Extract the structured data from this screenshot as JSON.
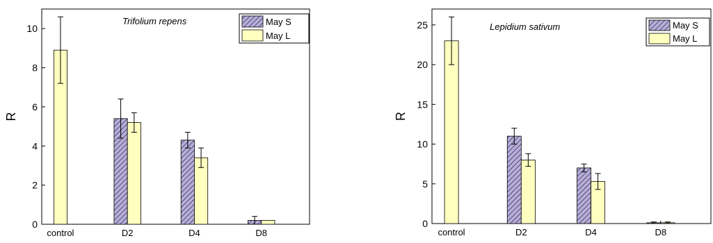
{
  "chart_data": [
    {
      "type": "bar",
      "annotation": "Trifolium repens",
      "title": "",
      "xlabel": "",
      "ylabel": "R",
      "categories": [
        "control",
        "D2",
        "D4",
        "D8"
      ],
      "ylim": [
        0,
        11
      ],
      "yticks": [
        0,
        2,
        4,
        6,
        8,
        10
      ],
      "grid": false,
      "legend": "top-right",
      "series": [
        {
          "name": "May S",
          "values": [
            null,
            5.4,
            4.3,
            0.2
          ],
          "errors": [
            null,
            1.0,
            0.4,
            0.2
          ],
          "color": "#b8aed6",
          "hatch": true
        },
        {
          "name": "May L",
          "values": [
            8.9,
            5.2,
            3.4,
            0.2
          ],
          "errors": [
            1.7,
            0.5,
            0.5,
            0.0
          ],
          "color": "#ffffc0",
          "hatch": false
        }
      ]
    },
    {
      "type": "bar",
      "annotation": "Lepidium sativum",
      "title": "",
      "xlabel": "",
      "ylabel": "R",
      "categories": [
        "control",
        "D2",
        "D4",
        "D8"
      ],
      "ylim": [
        0,
        27
      ],
      "yticks": [
        0,
        5,
        10,
        15,
        20,
        25
      ],
      "grid": false,
      "legend": "top-right",
      "series": [
        {
          "name": "May S",
          "values": [
            null,
            11.0,
            7.0,
            0.1
          ],
          "errors": [
            null,
            1.0,
            0.5,
            0.1
          ],
          "color": "#b8aed6",
          "hatch": true
        },
        {
          "name": "May L",
          "values": [
            23.0,
            8.0,
            5.3,
            0.1
          ],
          "errors": [
            3.0,
            0.8,
            1.0,
            0.1
          ],
          "color": "#ffffc0",
          "hatch": false
        }
      ]
    }
  ]
}
